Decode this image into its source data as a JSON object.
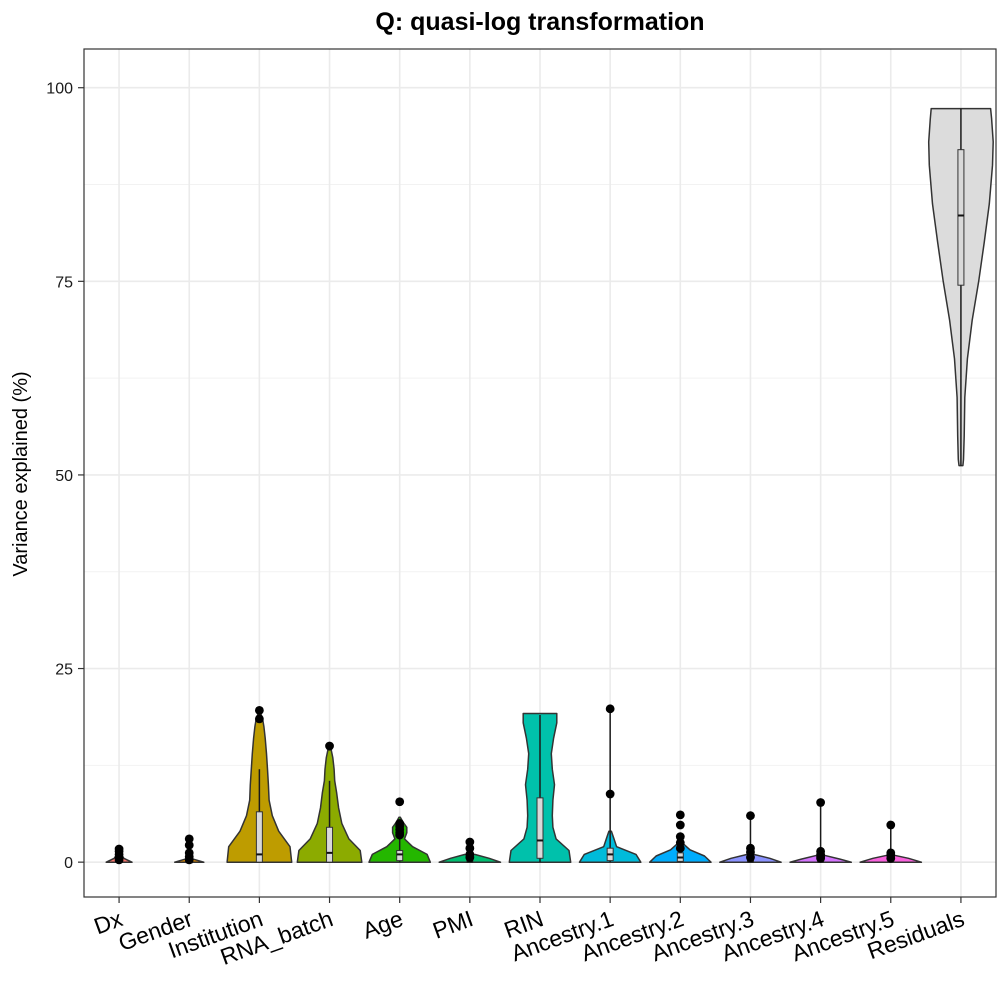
{
  "chart_data": {
    "type": "violin",
    "title": "Q: quasi-log transformation",
    "xlabel": "",
    "ylabel": "Variance explained (%)",
    "ylim": [
      -4.5,
      105
    ],
    "yticks": [
      0,
      25,
      50,
      75,
      100
    ],
    "grid": true,
    "legend": "none",
    "categories": [
      {
        "name": "Dx",
        "color": "#F8766D",
        "min": 0,
        "max": 1.2,
        "q1": 0,
        "median": 0,
        "q3": 0.1,
        "shape": [
          [
            0,
            0.4
          ],
          [
            0.5,
            0.15
          ],
          [
            1.2,
            0.03
          ]
        ],
        "outliers": [
          1.7,
          1.4,
          1.0,
          0.6,
          0.3
        ]
      },
      {
        "name": "Gender",
        "color": "#E18A00",
        "min": 0,
        "max": 0.5,
        "q1": 0,
        "median": 0,
        "q3": 0.05,
        "shape": [
          [
            0,
            0.45
          ],
          [
            0.5,
            0.04
          ]
        ],
        "outliers": [
          3.0,
          2.2,
          1.2,
          0.7,
          0.3
        ]
      },
      {
        "name": "Institution",
        "color": "#BE9C00",
        "min": 0,
        "max": 12,
        "q1": 0,
        "median": 1,
        "q3": 6.5,
        "shape": [
          [
            0,
            1.0
          ],
          [
            2,
            0.95
          ],
          [
            4,
            0.6
          ],
          [
            6,
            0.4
          ],
          [
            8,
            0.3
          ],
          [
            10,
            0.28
          ],
          [
            12,
            0.25
          ],
          [
            14,
            0.22
          ],
          [
            16,
            0.18
          ],
          [
            17.5,
            0.14
          ],
          [
            18.5,
            0.1
          ],
          [
            19.2,
            0.04
          ]
        ],
        "outliers": [
          19.6,
          18.5
        ]
      },
      {
        "name": "RNA_batch",
        "color": "#8CAB00",
        "min": 0,
        "max": 10.5,
        "q1": 0,
        "median": 1.2,
        "q3": 4.5,
        "shape": [
          [
            0,
            1.0
          ],
          [
            1.5,
            0.95
          ],
          [
            3,
            0.6
          ],
          [
            5,
            0.38
          ],
          [
            7,
            0.28
          ],
          [
            9,
            0.22
          ],
          [
            10.5,
            0.16
          ],
          [
            12,
            0.14
          ],
          [
            13.5,
            0.1
          ],
          [
            14.5,
            0.05
          ]
        ],
        "outliers": [
          15.0
        ]
      },
      {
        "name": "Age",
        "color": "#24B700",
        "min": 0,
        "max": 5,
        "q1": 0.2,
        "median": 1,
        "q3": 1.5,
        "shape": [
          [
            0,
            0.95
          ],
          [
            1,
            0.85
          ],
          [
            2,
            0.4
          ],
          [
            3,
            0.15
          ],
          [
            3.8,
            0.22
          ],
          [
            4.5,
            0.22
          ],
          [
            5.2,
            0.1
          ],
          [
            5.8,
            0.02
          ]
        ],
        "outliers": [
          7.8,
          5.0,
          4.6,
          4.2,
          3.8,
          3.5
        ]
      },
      {
        "name": "PMI",
        "color": "#00BE70",
        "min": 0,
        "max": 0.5,
        "q1": 0,
        "median": 0.1,
        "q3": 0.3,
        "shape": [
          [
            0,
            0.95
          ],
          [
            0.5,
            0.6
          ],
          [
            1,
            0.15
          ]
        ],
        "outliers": [
          2.6,
          1.8,
          1.0,
          0.6
        ]
      },
      {
        "name": "RIN",
        "color": "#00C1AB",
        "min": 0,
        "max": 19,
        "q1": 0.5,
        "median": 2.8,
        "q3": 8.3,
        "shape": [
          [
            0,
            0.95
          ],
          [
            1.5,
            0.9
          ],
          [
            3,
            0.5
          ],
          [
            4.5,
            0.4
          ],
          [
            6,
            0.38
          ],
          [
            8,
            0.4
          ],
          [
            10,
            0.45
          ],
          [
            12,
            0.38
          ],
          [
            14,
            0.35
          ],
          [
            16,
            0.42
          ],
          [
            18,
            0.52
          ],
          [
            19.2,
            0.52
          ]
        ],
        "outliers": []
      },
      {
        "name": "Ancestry.1",
        "color": "#00BBDA",
        "min": 0,
        "max": 20,
        "q1": 0.2,
        "median": 1,
        "q3": 1.8,
        "shape": [
          [
            0,
            0.95
          ],
          [
            1,
            0.8
          ],
          [
            2,
            0.2
          ],
          [
            3,
            0.12
          ],
          [
            4,
            0.04
          ]
        ],
        "outliers": [
          19.8,
          8.8
        ]
      },
      {
        "name": "Ancestry.2",
        "color": "#00ACFC",
        "min": 0,
        "max": 1.5,
        "q1": 0.1,
        "median": 0.6,
        "q3": 1.2,
        "shape": [
          [
            0,
            0.95
          ],
          [
            0.8,
            0.75
          ],
          [
            1.6,
            0.3
          ],
          [
            2.5,
            0.06
          ]
        ],
        "outliers": [
          6.1,
          4.8,
          3.3,
          2.5,
          1.8
        ]
      },
      {
        "name": "Ancestry.3",
        "color": "#8B93FF",
        "min": 0,
        "max": 6,
        "q1": 0,
        "median": 0.1,
        "q3": 0.4,
        "shape": [
          [
            0,
            0.95
          ],
          [
            0.5,
            0.6
          ],
          [
            1,
            0.1
          ]
        ],
        "outliers": [
          6.0,
          1.8,
          1.3,
          0.6
        ]
      },
      {
        "name": "Ancestry.4",
        "color": "#D575FE",
        "min": 0,
        "max": 7.7,
        "q1": 0,
        "median": 0.1,
        "q3": 0.3,
        "shape": [
          [
            0,
            0.95
          ],
          [
            0.4,
            0.6
          ],
          [
            0.9,
            0.1
          ]
        ],
        "outliers": [
          7.7,
          1.4,
          1.0,
          0.7,
          0.5
        ]
      },
      {
        "name": "Ancestry.5",
        "color": "#F962DD",
        "min": 0,
        "max": 4.8,
        "q1": 0,
        "median": 0.2,
        "q3": 0.5,
        "shape": [
          [
            0,
            0.95
          ],
          [
            0.5,
            0.55
          ],
          [
            0.9,
            0.1
          ]
        ],
        "outliers": [
          4.8,
          1.2,
          0.9,
          0.5
        ]
      },
      {
        "name": "Residuals",
        "color": "#DCDCDC",
        "min": 51.2,
        "max": 97.3,
        "q1": 74.5,
        "median": 83.5,
        "q3": 92,
        "shape": [
          [
            51.2,
            0.06
          ],
          [
            52,
            0.08
          ],
          [
            55,
            0.1
          ],
          [
            60,
            0.12
          ],
          [
            65,
            0.2
          ],
          [
            70,
            0.35
          ],
          [
            75,
            0.55
          ],
          [
            80,
            0.72
          ],
          [
            85,
            0.88
          ],
          [
            90,
            0.98
          ],
          [
            93,
            1.0
          ],
          [
            96,
            0.95
          ],
          [
            97.3,
            0.92
          ]
        ],
        "outliers": []
      }
    ]
  }
}
